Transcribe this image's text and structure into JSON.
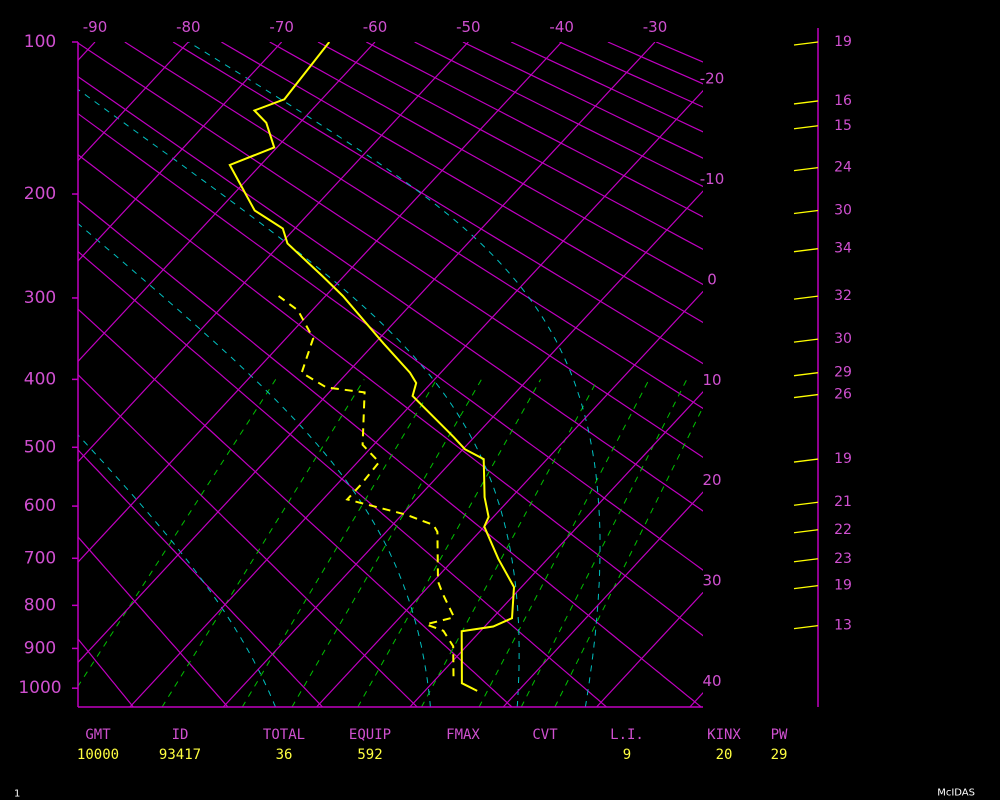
{
  "chart_data": {
    "type": "skewt",
    "ylim": [
      1050,
      100
    ],
    "yticks": [
      100,
      200,
      300,
      400,
      500,
      600,
      700,
      800,
      900,
      1000
    ],
    "xlim": [
      -90,
      -30
    ],
    "xticks": [
      -90,
      -80,
      -70,
      -60,
      -50,
      -40,
      -30,
      -20,
      -10,
      0,
      10,
      20,
      30,
      40
    ],
    "series": [
      {
        "color": "#ffff00",
        "style": "solid",
        "pressure": [
          1007,
          987,
          859,
          848,
          829,
          760,
          701,
          638,
          620,
          584,
          519,
          503,
          484,
          423,
          405,
          391,
          353,
          298,
          277,
          244,
          230,
          214,
          177,
          164,
          147,
          139,
          132,
          100
        ],
        "temperature": [
          15.6,
          13.2,
          8.0,
          10.9,
          12.1,
          9.2,
          4.7,
          0,
          -0.5,
          -2.9,
          -6.8,
          -9.8,
          -12.2,
          -20.7,
          -21.6,
          -23.3,
          -29.1,
          -38.1,
          -42.2,
          -49.3,
          -51.3,
          -56.1,
          -63.3,
          -60.3,
          -63.6,
          -66.1,
          -64.0,
          -64.9
        ]
      },
      {
        "color": "#ffff00",
        "style": "dashed",
        "pressure": [
          969,
          895,
          858,
          843,
          827,
          774,
          748,
          648,
          635,
          616,
          588,
          563,
          524,
          496,
          418,
          411,
          391,
          347,
          314,
          298
        ],
        "temperature": [
          11.6,
          8.6,
          6.0,
          3.5,
          5.8,
          2.2,
          0.5,
          -4.5,
          -5.6,
          -9.5,
          -17.4,
          -17.4,
          -17.7,
          -21.2,
          -26.2,
          -30.8,
          -34.9,
          -37.1,
          -41.5,
          -45.0
        ]
      }
    ],
    "winds": {
      "color": "#ffff00",
      "pressure": [
        100,
        133,
        149,
        179,
        214,
        249,
        298,
        348,
        391,
        421,
        519,
        593,
        644,
        701,
        757,
        846
      ],
      "speed": [
        19,
        16,
        15,
        24,
        30,
        34,
        32,
        30,
        29,
        26,
        19,
        21,
        22,
        23,
        19,
        13
      ]
    },
    "indices": [
      {
        "label": "GMT",
        "value": "10000"
      },
      {
        "label": "ID",
        "value": "93417"
      },
      {
        "label": "TOTAL",
        "value": 36
      },
      {
        "label": "EQUIP",
        "value": 592
      },
      {
        "label": "FMAX"
      },
      {
        "label": "CVT"
      },
      {
        "label": "L.I.",
        "value": 9
      },
      {
        "label": "KINX",
        "value": 20
      },
      {
        "label": "PW",
        "value": 29
      }
    ]
  },
  "footer": {
    "page": "1",
    "brand": "McIDAS"
  }
}
